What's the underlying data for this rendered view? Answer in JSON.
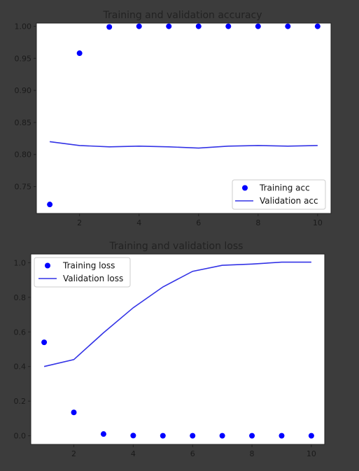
{
  "chart_data": [
    {
      "type": "line",
      "title": "Training and validation accuracy",
      "xlabel": "",
      "ylabel": "",
      "x": [
        1,
        2,
        3,
        4,
        5,
        6,
        7,
        8,
        9,
        10
      ],
      "xlim": [
        0.55,
        10.45
      ],
      "ylim": [
        0.708,
        1.005
      ],
      "xticks": [
        2,
        4,
        6,
        8,
        10
      ],
      "xtick_labels": [
        "2",
        "4",
        "6",
        "8",
        "10"
      ],
      "yticks": [
        0.75,
        0.8,
        0.85,
        0.9,
        0.95,
        1.0
      ],
      "ytick_labels": [
        "0.75",
        "0.80",
        "0.85",
        "0.90",
        "0.95",
        "1.00"
      ],
      "grid": false,
      "legend_position": "lower-right",
      "series": [
        {
          "name": "Training acc",
          "style": "points",
          "color": "#0000ff",
          "values": [
            0.722,
            0.958,
            0.999,
            1.0,
            1.0,
            1.0,
            1.0,
            1.0,
            1.0,
            1.0
          ]
        },
        {
          "name": "Validation acc",
          "style": "line",
          "color": "#3333e6",
          "values": [
            0.82,
            0.814,
            0.812,
            0.813,
            0.812,
            0.81,
            0.813,
            0.814,
            0.813,
            0.814
          ]
        }
      ]
    },
    {
      "type": "line",
      "title": "Training and validation loss",
      "xlabel": "",
      "ylabel": "",
      "x": [
        1,
        2,
        3,
        4,
        5,
        6,
        7,
        8,
        9,
        10
      ],
      "xlim": [
        0.55,
        10.45
      ],
      "ylim": [
        -0.05,
        1.05
      ],
      "xticks": [
        2,
        4,
        6,
        8,
        10
      ],
      "xtick_labels": [
        "2",
        "4",
        "6",
        "8",
        "10"
      ],
      "yticks": [
        0.0,
        0.2,
        0.4,
        0.6,
        0.8,
        1.0
      ],
      "ytick_labels": [
        "0.0",
        "0.2",
        "0.4",
        "0.6",
        "0.8",
        "1.0"
      ],
      "grid": false,
      "legend_position": "upper-left",
      "series": [
        {
          "name": "Training loss",
          "style": "points",
          "color": "#0000ff",
          "values": [
            0.54,
            0.135,
            0.01,
            0.001,
            0.0,
            0.0,
            0.0,
            0.0,
            0.0,
            0.0
          ]
        },
        {
          "name": "Validation loss",
          "style": "line",
          "color": "#3333e6",
          "values": [
            0.4,
            0.44,
            0.595,
            0.74,
            0.86,
            0.95,
            0.985,
            0.992,
            1.003,
            1.003
          ]
        }
      ]
    }
  ]
}
